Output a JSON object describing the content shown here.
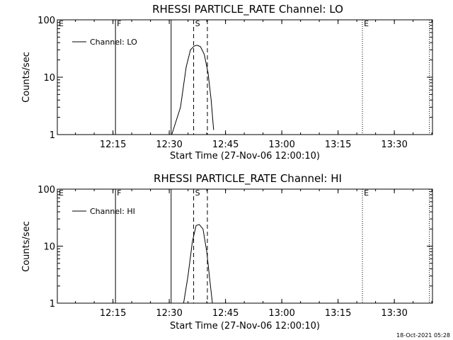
{
  "chart_data": [
    {
      "type": "line",
      "title": "RHESSI PARTICLE_RATE Channel: LO",
      "xlabel": "Start Time (27-Nov-06 12:00:10)",
      "ylabel": "Counts/sec",
      "yscale": "log",
      "ylim": [
        1,
        100
      ],
      "xlim": [
        "12:00:10",
        "13:40:10"
      ],
      "x_ticks": [
        "12:15",
        "12:30",
        "12:45",
        "13:00",
        "13:15",
        "13:30"
      ],
      "y_ticks": [
        "1",
        "10",
        "100"
      ],
      "legend": "top-left",
      "grid": false,
      "series": [
        {
          "name": "Channel: LO",
          "color": "#000000",
          "x": [
            "12:30:40",
            "12:33:00",
            "12:34:30",
            "12:35:40",
            "12:36:40",
            "12:37:30",
            "12:38:20",
            "12:39:20",
            "12:40:20",
            "12:41:10",
            "12:41:50"
          ],
          "y": [
            1,
            3,
            15,
            30,
            35,
            36,
            34,
            25,
            12,
            4,
            1.2
          ]
        }
      ],
      "markers": [
        {
          "label": "E",
          "time": "12:00:10",
          "style": "dotted"
        },
        {
          "label": "F",
          "time": "12:15:40",
          "style": "solid"
        },
        {
          "label": "",
          "time": "12:30:30",
          "style": "solid"
        },
        {
          "label": "S",
          "time": "12:36:30",
          "style": "dashed"
        },
        {
          "label": "",
          "time": "12:40:10",
          "style": "dashed"
        },
        {
          "label": "E",
          "time": "13:21:30",
          "style": "dotted"
        },
        {
          "label": "",
          "time": "13:39:20",
          "style": "dotted"
        }
      ]
    },
    {
      "type": "line",
      "title": "RHESSI PARTICLE_RATE Channel: HI",
      "xlabel": "Start Time (27-Nov-06 12:00:10)",
      "ylabel": "Counts/sec",
      "yscale": "log",
      "ylim": [
        1,
        100
      ],
      "xlim": [
        "12:00:10",
        "13:40:10"
      ],
      "x_ticks": [
        "12:15",
        "12:30",
        "12:45",
        "13:00",
        "13:15",
        "13:30"
      ],
      "y_ticks": [
        "1",
        "10",
        "100"
      ],
      "legend": "top-left",
      "grid": false,
      "series": [
        {
          "name": "Channel: HI",
          "color": "#000000",
          "x": [
            "12:33:50",
            "12:35:00",
            "12:36:10",
            "12:37:10",
            "12:38:00",
            "12:39:00",
            "12:40:00",
            "12:40:50",
            "12:41:30"
          ],
          "y": [
            1,
            3,
            12,
            23,
            24,
            20,
            8,
            2.5,
            1
          ]
        }
      ],
      "markers": [
        {
          "label": "E",
          "time": "12:00:10",
          "style": "dotted"
        },
        {
          "label": "F",
          "time": "12:15:40",
          "style": "solid"
        },
        {
          "label": "",
          "time": "12:30:30",
          "style": "solid"
        },
        {
          "label": "S",
          "time": "12:36:30",
          "style": "dashed"
        },
        {
          "label": "",
          "time": "12:40:10",
          "style": "dashed"
        },
        {
          "label": "E",
          "time": "13:21:30",
          "style": "dotted"
        },
        {
          "label": "",
          "time": "13:39:20",
          "style": "dotted"
        }
      ]
    }
  ],
  "footer": {
    "timestamp": "18-Oct-2021 05:28"
  }
}
